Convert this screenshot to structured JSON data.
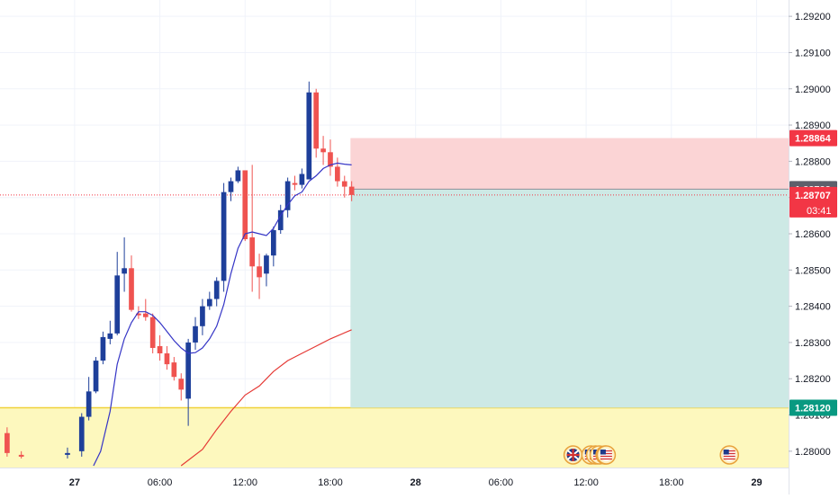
{
  "chart_data": {
    "type": "candlestick",
    "x_tick_labels": [
      {
        "label": "27",
        "bold": true,
        "t": 0
      },
      {
        "label": "06:00",
        "t": 360
      },
      {
        "label": "12:00",
        "t": 720
      },
      {
        "label": "18:00",
        "t": 1080
      },
      {
        "label": "28",
        "bold": true,
        "t": 1440
      },
      {
        "label": "06:00",
        "t": 1800
      },
      {
        "label": "12:00",
        "t": 2160
      },
      {
        "label": "18:00",
        "t": 2520
      },
      {
        "label": "29",
        "bold": true,
        "t": 2880
      }
    ],
    "x_range_minutes": [
      -315,
      3015
    ],
    "y_axis": {
      "range": [
        1.27955,
        1.29245
      ],
      "ticks": [
        "1.28000",
        "1.28100",
        "1.28200",
        "1.28300",
        "1.28400",
        "1.28500",
        "1.28600",
        "1.28700",
        "1.28800",
        "1.28900",
        "1.29000",
        "1.29100",
        "1.29200"
      ]
    },
    "candle_interval_minutes": 30,
    "candles": [
      {
        "t": -285,
        "o": 1.2805,
        "h": 1.28066,
        "l": 1.27985,
        "c": 1.27995
      },
      {
        "t": -225,
        "o": 1.2799,
        "h": 1.28,
        "l": 1.2798,
        "c": 1.27985
      },
      {
        "t": -30,
        "o": 1.2799,
        "h": 1.2801,
        "l": 1.2798,
        "c": 1.27995
      },
      {
        "t": 30,
        "o": 1.28,
        "h": 1.28105,
        "l": 1.27985,
        "c": 1.28095
      },
      {
        "t": 60,
        "o": 1.28095,
        "h": 1.28205,
        "l": 1.28085,
        "c": 1.28165
      },
      {
        "t": 90,
        "o": 1.28165,
        "h": 1.2826,
        "l": 1.2816,
        "c": 1.2825
      },
      {
        "t": 120,
        "o": 1.2825,
        "h": 1.2833,
        "l": 1.2824,
        "c": 1.28315
      },
      {
        "t": 150,
        "o": 1.2831,
        "h": 1.2836,
        "l": 1.28295,
        "c": 1.28325
      },
      {
        "t": 180,
        "o": 1.28325,
        "h": 1.2855,
        "l": 1.2832,
        "c": 1.28485
      },
      {
        "t": 210,
        "o": 1.2849,
        "h": 1.2859,
        "l": 1.2844,
        "c": 1.28505
      },
      {
        "t": 240,
        "o": 1.28505,
        "h": 1.2854,
        "l": 1.28385,
        "c": 1.2839
      },
      {
        "t": 270,
        "o": 1.2838,
        "h": 1.284,
        "l": 1.28365,
        "c": 1.28375
      },
      {
        "t": 300,
        "o": 1.2838,
        "h": 1.2842,
        "l": 1.2836,
        "c": 1.2837
      },
      {
        "t": 330,
        "o": 1.2837,
        "h": 1.2838,
        "l": 1.2827,
        "c": 1.28285
      },
      {
        "t": 360,
        "o": 1.2829,
        "h": 1.2832,
        "l": 1.2825,
        "c": 1.2827
      },
      {
        "t": 390,
        "o": 1.2827,
        "h": 1.2829,
        "l": 1.28225,
        "c": 1.2824
      },
      {
        "t": 420,
        "o": 1.28245,
        "h": 1.2826,
        "l": 1.28195,
        "c": 1.28205
      },
      {
        "t": 450,
        "o": 1.282,
        "h": 1.28215,
        "l": 1.2814,
        "c": 1.2817
      },
      {
        "t": 480,
        "o": 1.28145,
        "h": 1.2831,
        "l": 1.2807,
        "c": 1.283
      },
      {
        "t": 510,
        "o": 1.283,
        "h": 1.2837,
        "l": 1.2828,
        "c": 1.28345
      },
      {
        "t": 540,
        "o": 1.28345,
        "h": 1.2842,
        "l": 1.2832,
        "c": 1.284
      },
      {
        "t": 570,
        "o": 1.284,
        "h": 1.2844,
        "l": 1.2839,
        "c": 1.2842
      },
      {
        "t": 600,
        "o": 1.2842,
        "h": 1.2848,
        "l": 1.284,
        "c": 1.2847
      },
      {
        "t": 630,
        "o": 1.2847,
        "h": 1.2874,
        "l": 1.2844,
        "c": 1.28715
      },
      {
        "t": 660,
        "o": 1.28715,
        "h": 1.28755,
        "l": 1.2869,
        "c": 1.28745
      },
      {
        "t": 690,
        "o": 1.28745,
        "h": 1.28785,
        "l": 1.2874,
        "c": 1.28775
      },
      {
        "t": 720,
        "o": 1.28775,
        "h": 1.28775,
        "l": 1.2858,
        "c": 1.28585
      },
      {
        "t": 750,
        "o": 1.2859,
        "h": 1.2879,
        "l": 1.2844,
        "c": 1.2851
      },
      {
        "t": 780,
        "o": 1.2851,
        "h": 1.28545,
        "l": 1.2842,
        "c": 1.2848
      },
      {
        "t": 810,
        "o": 1.2849,
        "h": 1.28545,
        "l": 1.28455,
        "c": 1.2854
      },
      {
        "t": 840,
        "o": 1.2854,
        "h": 1.2862,
        "l": 1.2851,
        "c": 1.2861
      },
      {
        "t": 870,
        "o": 1.2861,
        "h": 1.2868,
        "l": 1.286,
        "c": 1.28665
      },
      {
        "t": 900,
        "o": 1.28665,
        "h": 1.28755,
        "l": 1.28645,
        "c": 1.28745
      },
      {
        "t": 930,
        "o": 1.2874,
        "h": 1.2876,
        "l": 1.2872,
        "c": 1.28735
      },
      {
        "t": 960,
        "o": 1.28735,
        "h": 1.2878,
        "l": 1.28725,
        "c": 1.28765
      },
      {
        "t": 990,
        "o": 1.2875,
        "h": 1.2902,
        "l": 1.2875,
        "c": 1.2899
      },
      {
        "t": 1020,
        "o": 1.2899,
        "h": 1.29,
        "l": 1.2881,
        "c": 1.28835
      },
      {
        "t": 1050,
        "o": 1.28835,
        "h": 1.2887,
        "l": 1.2879,
        "c": 1.28825
      },
      {
        "t": 1080,
        "o": 1.28825,
        "h": 1.2886,
        "l": 1.2876,
        "c": 1.28785
      },
      {
        "t": 1110,
        "o": 1.28785,
        "h": 1.2881,
        "l": 1.2873,
        "c": 1.28745
      },
      {
        "t": 1140,
        "o": 1.28745,
        "h": 1.2876,
        "l": 1.287,
        "c": 1.2873
      },
      {
        "t": 1170,
        "o": 1.2873,
        "h": 1.28745,
        "l": 1.2869,
        "c": 1.28707
      }
    ],
    "ma_fast": {
      "color": "#3535c6",
      "points": [
        [
          80,
          1.2796
        ],
        [
          110,
          1.28
        ],
        [
          150,
          1.2811
        ],
        [
          180,
          1.2824
        ],
        [
          210,
          1.2831
        ],
        [
          240,
          1.28355
        ],
        [
          270,
          1.28385
        ],
        [
          300,
          1.28385
        ],
        [
          330,
          1.28375
        ],
        [
          360,
          1.28355
        ],
        [
          390,
          1.2833
        ],
        [
          420,
          1.28305
        ],
        [
          450,
          1.28285
        ],
        [
          480,
          1.2827
        ],
        [
          510,
          1.28272
        ],
        [
          540,
          1.28285
        ],
        [
          570,
          1.2831
        ],
        [
          600,
          1.28345
        ],
        [
          630,
          1.28405
        ],
        [
          660,
          1.2849
        ],
        [
          690,
          1.2856
        ],
        [
          720,
          1.286
        ],
        [
          750,
          1.28605
        ],
        [
          780,
          1.286
        ],
        [
          810,
          1.28595
        ],
        [
          840,
          1.28615
        ],
        [
          870,
          1.2865
        ],
        [
          900,
          1.2868
        ],
        [
          930,
          1.28705
        ],
        [
          960,
          1.28715
        ],
        [
          990,
          1.28745
        ],
        [
          1020,
          1.2876
        ],
        [
          1050,
          1.2878
        ],
        [
          1080,
          1.2879
        ],
        [
          1110,
          1.28795
        ],
        [
          1140,
          1.28792
        ],
        [
          1170,
          1.2879
        ]
      ]
    },
    "ma_slow": {
      "color": "#e53935",
      "points": [
        [
          450,
          1.2796
        ],
        [
          540,
          1.28005
        ],
        [
          600,
          1.2806
        ],
        [
          660,
          1.2811
        ],
        [
          720,
          1.28155
        ],
        [
          780,
          1.2818
        ],
        [
          840,
          1.2822
        ],
        [
          900,
          1.2825
        ],
        [
          960,
          1.2827
        ],
        [
          1020,
          1.2829
        ],
        [
          1080,
          1.2831
        ],
        [
          1170,
          1.28335
        ]
      ]
    },
    "position": {
      "start_t": 1165,
      "entry": 1.28723,
      "stop": 1.28864,
      "target": 1.2812,
      "risk_fill": "#fbd4d5",
      "reward_fill": "#cde9e5"
    },
    "support_zone": {
      "from": 1.27955,
      "to": 1.2812,
      "fill": "#fdf8be",
      "border": "#f0d23a"
    },
    "current_price": 1.28707,
    "price_labels": [
      {
        "text": "1.28864",
        "value": 1.28864,
        "bg": "#f23645"
      },
      {
        "text": "1.28723",
        "value": 1.28723,
        "bg": "#5d606b"
      },
      {
        "text": "1.28707",
        "value": 1.28707,
        "bg": "#f23645",
        "countdown": "03:41"
      },
      {
        "text": "1.28120",
        "value": 1.2812,
        "bg": "#089981"
      }
    ],
    "events": [
      {
        "t": 2105,
        "icon": "uk-flag-icon"
      },
      {
        "t": 2180,
        "icon": "us-flag-icon"
      },
      {
        "t": 2200,
        "icon": "us-flag-icon"
      },
      {
        "t": 2215,
        "icon": "us-flag-icon"
      },
      {
        "t": 2240,
        "icon": "us-flag-icon"
      },
      {
        "t": 2245,
        "icon": "us-flag-icon"
      },
      {
        "t": 2765,
        "icon": "us-flag-icon"
      }
    ],
    "colors": {
      "up": "#1e3f9a",
      "down": "#ef5350",
      "grid": "#f0f3fa",
      "axis_text": "#131722",
      "current_line": "#f23645"
    }
  }
}
